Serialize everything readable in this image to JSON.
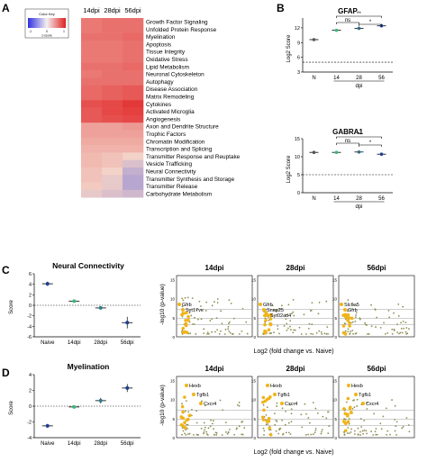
{
  "panel_labels": {
    "a": "A",
    "b": "B",
    "c": "C",
    "d": "D"
  },
  "colors": {
    "high": "#e23030",
    "mid": "#f3d2c8",
    "low": "#7a7ad6",
    "green": "#3cb87a",
    "blue": "#1f3f95",
    "gold": "#f0b418",
    "olive": "#8d8d52"
  },
  "legend": {
    "title": "Color Key",
    "ticks": [
      "-1",
      "0",
      "1"
    ],
    "xlabel": "z-score"
  },
  "chart_data": [
    {
      "type": "heatmap",
      "columns": [
        "14dpi",
        "28dpi",
        "56dpi"
      ],
      "rows": [
        "Growth Factor Signaling",
        "Unfolded Protein Response",
        "Myelination",
        "Apoptosis",
        "Tissue Integrity",
        "Oxidative Stress",
        "Lipid Metabolism",
        "Neuronal Cytoskeleton",
        "Autophagy",
        "Disease Association",
        "Matrix Remodeling",
        "Cytokines",
        "Activated Microglia",
        "Angiogenesis",
        "Axon and Dendrite Structure",
        "Trophic Factors",
        "Chromatin Modification",
        "Transcription and Splicing",
        "Transmitter Response and Reuptake",
        "Vesicle Trafficking",
        "Neural Connectivity",
        "Transmitter Synthesis and Storage",
        "Transmitter Release",
        "Carbohydrate Metabolism"
      ],
      "values": [
        [
          0.55,
          0.6,
          0.6
        ],
        [
          0.55,
          0.6,
          0.6
        ],
        [
          0.6,
          0.6,
          0.65
        ],
        [
          0.55,
          0.55,
          0.6
        ],
        [
          0.55,
          0.55,
          0.6
        ],
        [
          0.55,
          0.55,
          0.6
        ],
        [
          0.6,
          0.6,
          0.65
        ],
        [
          0.55,
          0.6,
          0.6
        ],
        [
          0.6,
          0.6,
          0.6
        ],
        [
          0.65,
          0.7,
          0.75
        ],
        [
          0.65,
          0.7,
          0.75
        ],
        [
          0.8,
          0.85,
          0.95
        ],
        [
          0.75,
          0.85,
          0.9
        ],
        [
          0.75,
          0.8,
          0.85
        ],
        [
          0.3,
          0.3,
          0.35
        ],
        [
          0.3,
          0.3,
          0.3
        ],
        [
          0.25,
          0.25,
          0.25
        ],
        [
          0.2,
          0.2,
          0.2
        ],
        [
          0.15,
          0.1,
          0.0
        ],
        [
          0.15,
          0.1,
          -0.2
        ],
        [
          0.1,
          0.0,
          -0.4
        ],
        [
          0.1,
          -0.1,
          -0.5
        ],
        [
          0.05,
          -0.1,
          -0.5
        ],
        [
          -0.1,
          -0.2,
          -0.3
        ]
      ],
      "vmin": -1,
      "vmax": 1
    },
    {
      "type": "scatter",
      "title": "GFAP",
      "ylabel": "Log2 Score",
      "xlabel": "dpi",
      "categories": [
        "N",
        "14",
        "28",
        "56"
      ],
      "values": [
        9.6,
        11.5,
        11.9,
        12.4
      ],
      "ylim": [
        3,
        14
      ],
      "yticks": [
        "3",
        "6",
        "9",
        "12"
      ],
      "dashed_at": 5,
      "brackets": [
        {
          "from": 1,
          "to": 3,
          "label": "**"
        },
        {
          "from": 1,
          "to": 2,
          "label": "ns"
        },
        {
          "from": 2,
          "to": 3,
          "label": "*"
        }
      ]
    },
    {
      "type": "scatter",
      "title": "GABRA1",
      "ylabel": "Log2 Score",
      "xlabel": "dpi",
      "categories": [
        "N",
        "14",
        "28",
        "56"
      ],
      "values": [
        11.2,
        11.2,
        11.3,
        10.7
      ],
      "ylim": [
        0,
        15
      ],
      "yticks": [
        "0",
        "5",
        "10",
        "15"
      ],
      "dashed_at": 5,
      "brackets": [
        {
          "from": 1,
          "to": 3,
          "label": "*"
        },
        {
          "from": 1,
          "to": 2,
          "label": "ns"
        },
        {
          "from": 2,
          "to": 3,
          "label": "*"
        }
      ]
    },
    {
      "type": "scatter",
      "title": "Neural Connectivity",
      "ylabel": "Score",
      "categories": [
        "Naive",
        "14dpi",
        "28dpi",
        "56dpi"
      ],
      "values": [
        4.1,
        0.8,
        -0.5,
        -3.3
      ],
      "errors": [
        0.4,
        0.2,
        0.15,
        1.1
      ],
      "ylim": [
        -6,
        6
      ],
      "yticks": [
        "-6",
        "-4",
        "-2",
        "0",
        "2",
        "4",
        "6"
      ]
    },
    {
      "type": "scatter",
      "title": "Myelination",
      "ylabel": "Score",
      "categories": [
        "Naive",
        "14dpi",
        "28dpi",
        "56dpi"
      ],
      "values": [
        -2.5,
        -0.1,
        0.7,
        2.3
      ],
      "errors": [
        0.25,
        0.15,
        0.35,
        0.5
      ],
      "ylim": [
        -4,
        4
      ],
      "yticks": [
        "-4",
        "-2",
        "0",
        "2",
        "4"
      ]
    },
    {
      "type": "scatter",
      "panel": "C-volcano",
      "ylabel": "-log10 (p-value)",
      "xlabel": "Log2 (fold change vs. Naive)",
      "plots": [
        {
          "title": "14dpi",
          "labels": [
            "Gfrb",
            "Syt17ve"
          ]
        },
        {
          "title": "28dpi",
          "labels": [
            "Gfrb",
            "Snap25",
            "Syt02ad4"
          ]
        },
        {
          "title": "56dpi",
          "labels": [
            "Slc6a5",
            "Gfrb"
          ]
        }
      ],
      "yticks": [
        "0",
        "5",
        "10",
        "15"
      ]
    },
    {
      "type": "scatter",
      "panel": "D-volcano",
      "ylabel": "-log10 (p-value)",
      "xlabel": "Log2 (fold change vs. Naive)",
      "plots": [
        {
          "title": "14dpi",
          "labels": [
            "Hexb",
            "Tgfb1",
            "Cxcr4"
          ]
        },
        {
          "title": "28dpi",
          "labels": [
            "Hexb",
            "Tgfb1",
            "Cxcr4"
          ]
        },
        {
          "title": "56dpi",
          "labels": [
            "Hexb",
            "Tgfb1",
            "Cxcr4"
          ]
        }
      ],
      "yticks": [
        "0",
        "5",
        "10",
        "15"
      ]
    }
  ]
}
